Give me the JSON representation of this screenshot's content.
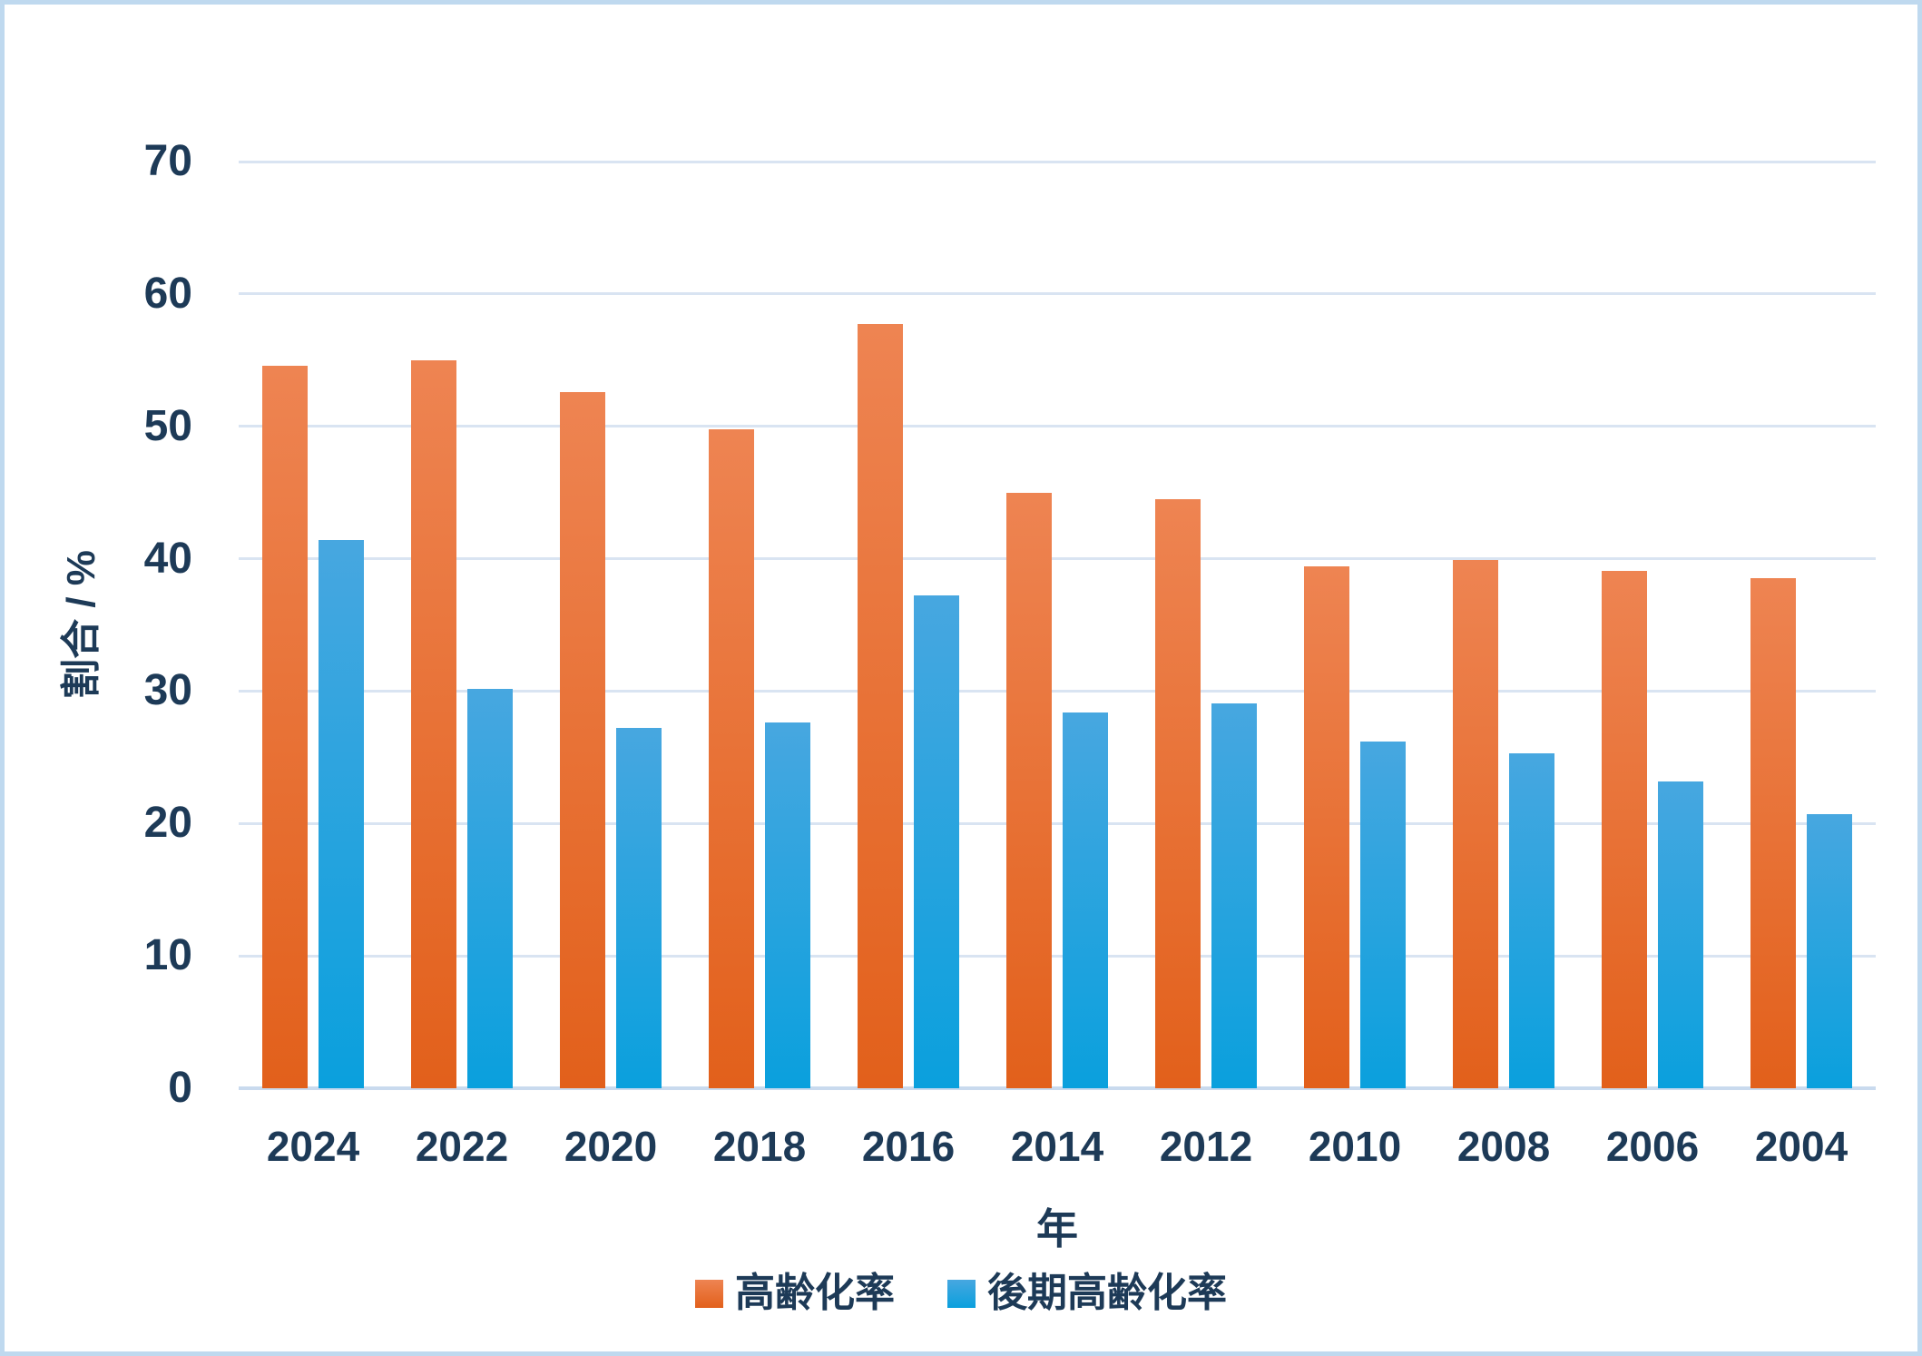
{
  "chart_data": {
    "type": "bar",
    "title": "",
    "xlabel": "年",
    "ylabel": "割合 / %",
    "ylim": [
      0,
      70
    ],
    "ytick_step": 10,
    "y_tick_labels": [
      "70",
      "60",
      "50",
      "40",
      "30",
      "20",
      "10",
      "0"
    ],
    "grid": true,
    "legend_position": "bottom-center",
    "categories": [
      "2024",
      "2022",
      "2020",
      "2018",
      "2016",
      "2014",
      "2012",
      "2010",
      "2008",
      "2006",
      "2004"
    ],
    "series": [
      {
        "name": "高齢化率",
        "color_top": "#ee8452",
        "color_bottom": "#e2601b",
        "values": [
          54.6,
          55.0,
          52.6,
          49.8,
          57.7,
          45.0,
          44.5,
          39.4,
          39.9,
          39.1,
          38.5
        ]
      },
      {
        "name": "後期高齢化率",
        "color_top": "#47a7e0",
        "color_bottom": "#0aa0dd",
        "values": [
          41.4,
          30.2,
          27.2,
          27.6,
          37.2,
          28.4,
          29.1,
          26.2,
          25.3,
          23.2,
          20.7
        ]
      }
    ]
  },
  "style": {
    "text_color": "#1d3a57",
    "gridline_color": "#d9e4f2",
    "axis_line_color": "#c9daee",
    "frame_border_color": "#bfd9ef",
    "background_color": "#ffffff"
  }
}
